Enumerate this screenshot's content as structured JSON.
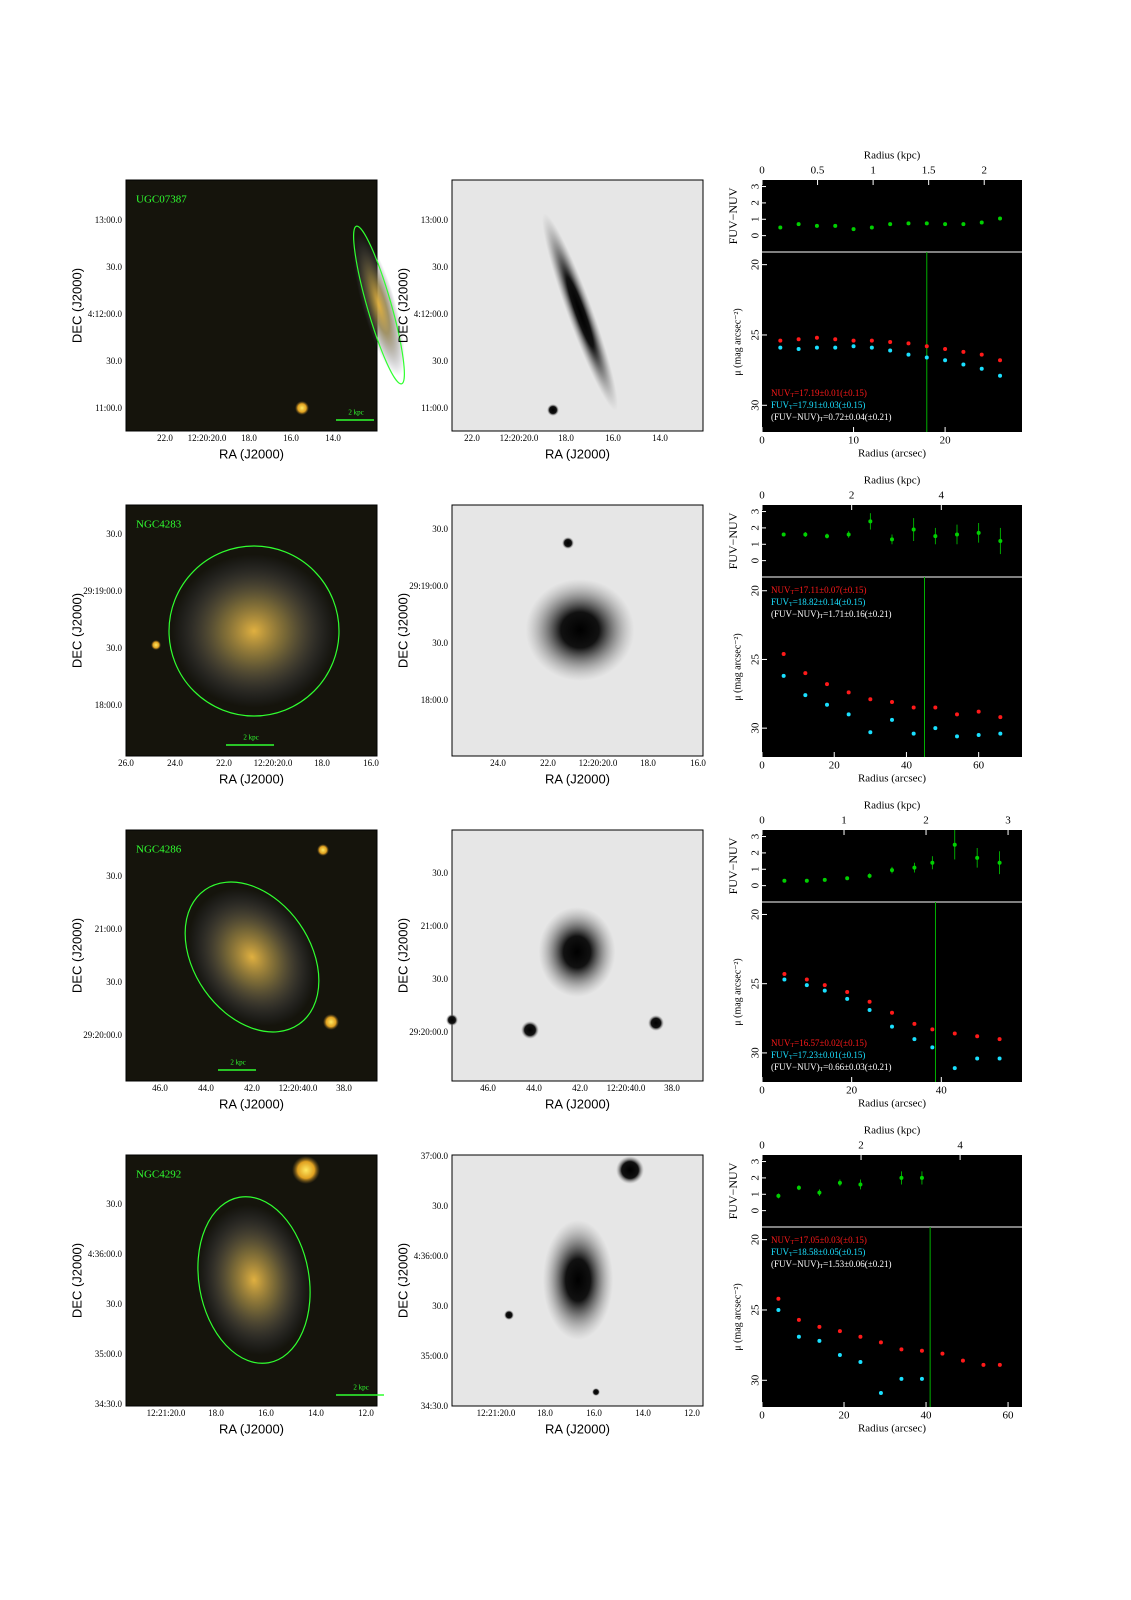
{
  "labels": {
    "ra": "RA (J2000)",
    "dec": "DEC (J2000)",
    "radius_kpc": "Radius (kpc)",
    "radius_arcsec": "Radius (arcsec)",
    "color_axis": "FUV−NUV",
    "mu_axis": "μ (mag arcsec⁻²)"
  },
  "colors": {
    "nuv": "#ff1a1a",
    "fuv": "#1ae0ff",
    "color": "#00d000",
    "rtotal": "#00b000"
  },
  "rows": [
    {
      "name": "UGC07387",
      "scale_bar": "2 kpc",
      "image": {
        "dec_ticks": [
          "13:00.0",
          "30.0",
          "4:12:00.0",
          "30.0",
          "11:00.0"
        ],
        "ra_ticks": [
          "22.0",
          "12:20:20.0",
          "18.0",
          "16.0",
          "14.0"
        ]
      },
      "gray": {
        "dec_ticks": [
          "13:00.0",
          "30.0",
          "4:12:00.0",
          "30.0",
          "11:00.0"
        ],
        "ra_ticks": [
          "22.0",
          "12:20:20.0",
          "18.0",
          "16.0",
          "14.0"
        ]
      },
      "profile": {
        "type": "scatter",
        "xlim": [
          0,
          28.4
        ],
        "xticks": [
          0,
          10,
          20
        ],
        "kpclim": [
          0,
          2.34
        ],
        "kpcticks": [
          0,
          0.5,
          1,
          1.5,
          2
        ],
        "ylim": [
          19.1,
          31.9
        ],
        "yticks": [
          20,
          25,
          30
        ],
        "colorlim": [
          -1,
          3.4
        ],
        "colorticks": [
          0,
          1,
          2,
          3
        ],
        "r_total": 18,
        "x": [
          2,
          4,
          6,
          8,
          10,
          12,
          14,
          16,
          18,
          20,
          22,
          24,
          26
        ],
        "nuv": [
          25.4,
          25.3,
          25.2,
          25.3,
          25.4,
          25.4,
          25.5,
          25.6,
          25.8,
          26.0,
          26.2,
          26.4,
          26.8
        ],
        "fuv": [
          25.9,
          26.0,
          25.9,
          25.9,
          25.8,
          25.9,
          26.1,
          26.4,
          26.6,
          26.8,
          27.1,
          27.4,
          27.9
        ],
        "color": [
          0.5,
          0.7,
          0.6,
          0.6,
          0.4,
          0.5,
          0.7,
          0.75,
          0.75,
          0.7,
          0.7,
          0.8,
          1.05
        ],
        "color_err": [
          0.05,
          0.05,
          0.05,
          0.05,
          0.05,
          0.05,
          0.05,
          0.05,
          0.05,
          0.05,
          0.05,
          0.05,
          0.1
        ],
        "annotation_corner": "bottom-left",
        "annotations": [
          {
            "prefix": "NUV",
            "sub": "T",
            "rest": "=17.19±0.01(±0.15)",
            "color": "#ff1a1a"
          },
          {
            "prefix": "FUV",
            "sub": "T",
            "rest": "=17.91±0.03(±0.15)",
            "color": "#1ae0ff"
          },
          {
            "prefix": "(FUV−NUV)",
            "sub": "T",
            "rest": "=0.72±0.04(±0.21)",
            "color": "#ffffff"
          }
        ]
      }
    },
    {
      "name": "NGC4283",
      "scale_bar": "2 kpc",
      "image": {
        "dec_ticks": [
          "30.0",
          "29:19:00.0",
          "30.0",
          "18:00.0"
        ],
        "ra_ticks": [
          "26.0",
          "24.0",
          "22.0",
          "12:20:20.0",
          "18.0",
          "16.0"
        ]
      },
      "gray": {
        "dec_ticks": [
          "30.0",
          "29:19:00.0",
          "30.0",
          "18:00.0"
        ],
        "ra_ticks": [
          "24.0",
          "22.0",
          "12:20:20.0",
          "18.0",
          "16.0"
        ]
      },
      "profile": {
        "type": "scatter",
        "xlim": [
          0,
          72
        ],
        "xticks": [
          0,
          20,
          40,
          60
        ],
        "kpclim": [
          0,
          5.8
        ],
        "kpcticks": [
          0,
          2,
          4
        ],
        "ylim": [
          19.0,
          32.1
        ],
        "yticks": [
          20,
          25,
          30
        ],
        "colorlim": [
          -1,
          3.4
        ],
        "colorticks": [
          0,
          1,
          2,
          3
        ],
        "r_total": 45,
        "x": [
          6,
          12,
          18,
          24,
          30,
          36,
          42,
          48,
          54,
          60,
          66
        ],
        "nuv": [
          24.6,
          26.0,
          26.8,
          27.4,
          27.9,
          28.1,
          28.5,
          28.5,
          29.0,
          28.8,
          29.2
        ],
        "fuv": [
          26.2,
          27.6,
          28.3,
          29.0,
          30.3,
          29.4,
          30.4,
          30.0,
          30.6,
          30.5,
          30.4
        ],
        "color": [
          1.6,
          1.6,
          1.5,
          1.6,
          2.4,
          1.3,
          1.9,
          1.5,
          1.6,
          1.7,
          1.2
        ],
        "color_err": [
          0.1,
          0.15,
          0.15,
          0.2,
          0.5,
          0.3,
          0.7,
          0.5,
          0.6,
          0.6,
          0.8
        ],
        "annotation_corner": "top-left",
        "annotations": [
          {
            "prefix": "NUV",
            "sub": "T",
            "rest": "=17.11±0.07(±0.15)",
            "color": "#ff1a1a"
          },
          {
            "prefix": "FUV",
            "sub": "T",
            "rest": "=18.82±0.14(±0.15)",
            "color": "#1ae0ff"
          },
          {
            "prefix": "(FUV−NUV)",
            "sub": "T",
            "rest": "=1.71±0.16(±0.21)",
            "color": "#ffffff"
          }
        ]
      }
    },
    {
      "name": "NGC4286",
      "scale_bar": "2 kpc",
      "image": {
        "dec_ticks": [
          "30.0",
          "21:00.0",
          "30.0",
          "29:20:00.0"
        ],
        "ra_ticks": [
          "46.0",
          "44.0",
          "42.0",
          "12:20:40.0",
          "38.0"
        ]
      },
      "gray": {
        "dec_ticks": [
          "30.0",
          "21:00.0",
          "30.0",
          "29:20:00.0"
        ],
        "ra_ticks": [
          "46.0",
          "44.0",
          "42.0",
          "12:20:40.0",
          "38.0"
        ]
      },
      "profile": {
        "type": "scatter",
        "xlim": [
          0,
          58
        ],
        "xticks": [
          0,
          20,
          40
        ],
        "kpclim": [
          0,
          3.17
        ],
        "kpcticks": [
          0,
          1,
          2,
          3
        ],
        "ylim": [
          19.1,
          32.1
        ],
        "yticks": [
          20,
          25,
          30
        ],
        "colorlim": [
          -1,
          3.4
        ],
        "colorticks": [
          0,
          1,
          2,
          3
        ],
        "r_total": 38.7,
        "x": [
          5,
          10,
          14,
          19,
          24,
          29,
          34,
          38,
          43,
          48,
          53
        ],
        "nuv": [
          24.3,
          24.7,
          25.1,
          25.6,
          26.3,
          27.1,
          27.9,
          28.3,
          28.6,
          28.8,
          29.0
        ],
        "fuv": [
          24.7,
          25.1,
          25.5,
          26.1,
          26.9,
          28.1,
          29.0,
          29.6,
          31.1,
          30.4,
          30.4
        ],
        "color": [
          0.3,
          0.3,
          0.35,
          0.45,
          0.6,
          0.95,
          1.1,
          1.4,
          2.5,
          1.7,
          1.4
        ],
        "color_err": [
          0.1,
          0.1,
          0.1,
          0.1,
          0.15,
          0.2,
          0.3,
          0.4,
          0.9,
          0.6,
          0.7
        ],
        "annotation_corner": "bottom-left",
        "annotations": [
          {
            "prefix": "NUV",
            "sub": "T",
            "rest": "=16.57±0.02(±0.15)",
            "color": "#ff1a1a"
          },
          {
            "prefix": "FUV",
            "sub": "T",
            "rest": "=17.23±0.01(±0.15)",
            "color": "#1ae0ff"
          },
          {
            "prefix": "(FUV−NUV)",
            "sub": "T",
            "rest": "=0.66±0.03(±0.21)",
            "color": "#ffffff"
          }
        ]
      }
    },
    {
      "name": "NGC4292",
      "scale_bar": "2 kpc",
      "image": {
        "dec_ticks": [
          "30.0",
          "4:36:00.0",
          "30.0",
          "35:00.0",
          "34:30.0"
        ],
        "ra_ticks": [
          "12:21:20.0",
          "18.0",
          "16.0",
          "14.0",
          "12.0"
        ]
      },
      "gray": {
        "dec_ticks": [
          "37:00.0",
          "30.0",
          "4:36:00.0",
          "30.0",
          "35:00.0",
          "34:30.0"
        ],
        "ra_ticks": [
          "12:21:20.0",
          "18.0",
          "16.0",
          "14.0",
          "12.0"
        ]
      },
      "profile": {
        "type": "scatter",
        "xlim": [
          0,
          63.4
        ],
        "xticks": [
          0,
          20,
          40,
          60
        ],
        "kpclim": [
          0,
          5.25
        ],
        "kpcticks": [
          0,
          2,
          4
        ],
        "ylim": [
          19.1,
          31.9
        ],
        "yticks": [
          20,
          25,
          30
        ],
        "colorlim": [
          -1,
          3.4
        ],
        "colorticks": [
          0,
          1,
          2,
          3
        ],
        "r_total": 41,
        "x": [
          4,
          9,
          14,
          19,
          24,
          29,
          34,
          39,
          44,
          49,
          54,
          58
        ],
        "nuv": [
          24.2,
          25.7,
          26.2,
          26.5,
          26.9,
          27.3,
          27.8,
          27.9,
          28.1,
          28.6,
          28.9,
          28.9
        ],
        "fuv": [
          25.0,
          26.9,
          27.2,
          28.2,
          28.7,
          30.9,
          29.9,
          29.9,
          null,
          null,
          null,
          null
        ],
        "color": [
          0.9,
          1.4,
          1.1,
          1.7,
          1.6,
          null,
          2.0,
          2.0,
          null,
          null,
          null,
          null
        ],
        "color_err": [
          0.15,
          0.15,
          0.2,
          0.2,
          0.3,
          null,
          0.4,
          0.4,
          null,
          null,
          null,
          null
        ],
        "annotation_corner": "top-left",
        "annotations": [
          {
            "prefix": "NUV",
            "sub": "T",
            "rest": "=17.05±0.03(±0.15)",
            "color": "#ff1a1a"
          },
          {
            "prefix": "FUV",
            "sub": "T",
            "rest": "=18.58±0.05(±0.15)",
            "color": "#1ae0ff"
          },
          {
            "prefix": "(FUV−NUV)",
            "sub": "T",
            "rest": "=1.53±0.06(±0.21)",
            "color": "#ffffff"
          }
        ]
      }
    }
  ]
}
